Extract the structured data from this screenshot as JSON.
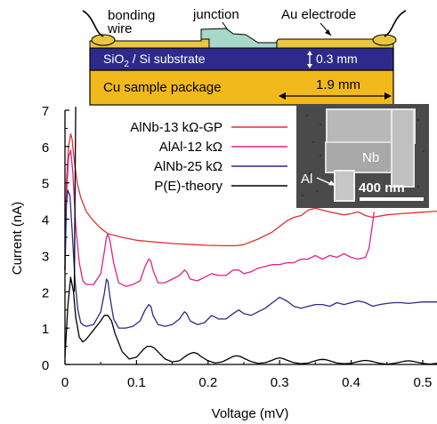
{
  "diagram": {
    "labels": {
      "bonding_wire_1": "bonding",
      "bonding_wire_2": "wire",
      "junction": "junction",
      "au_electrode": "Au electrode",
      "substrate_pre": "SiO",
      "substrate_sub": "2",
      "substrate_post": " / Si substrate",
      "thickness": "0.3 mm",
      "package": "Cu sample package",
      "width": "1.9 mm"
    },
    "colors": {
      "substrate": "#2e2a8c",
      "package": "#f2b91c",
      "electrode": "#e9c640",
      "junction": "#a8d8c8"
    }
  },
  "inset": {
    "label_nb": "Nb",
    "label_al": "Al",
    "scalebar": "400 nm"
  },
  "chart_data": {
    "type": "line",
    "xlabel": "Voltage (mV)",
    "ylabel": "Current (nA)",
    "xlim": [
      0,
      0.52
    ],
    "ylim": [
      0,
      7
    ],
    "xticks": [
      "0",
      "0.1",
      "0.2",
      "0.3",
      "0.4",
      "0.5"
    ],
    "yticks": [
      "0",
      "1",
      "2",
      "3",
      "4",
      "5",
      "6",
      "7"
    ],
    "legend_position": "top-center",
    "series": [
      {
        "name": "AlNb-13 kΩ-GP",
        "color": "#e03030",
        "x": [
          0,
          0.002,
          0.005,
          0.008,
          0.01,
          0.013,
          0.017,
          0.022,
          0.03,
          0.04,
          0.05,
          0.06,
          0.08,
          0.1,
          0.12,
          0.15,
          0.18,
          0.2,
          0.22,
          0.24,
          0.25,
          0.27,
          0.29,
          0.3,
          0.31,
          0.32,
          0.33,
          0.34,
          0.35,
          0.37,
          0.39,
          0.4,
          0.41,
          0.42,
          0.43,
          0.45,
          0.47,
          0.49,
          0.52
        ],
        "y": [
          2.6,
          5.0,
          6.0,
          6.35,
          6.2,
          5.6,
          5.0,
          4.6,
          4.2,
          3.95,
          3.75,
          3.6,
          3.5,
          3.42,
          3.38,
          3.33,
          3.3,
          3.28,
          3.27,
          3.27,
          3.3,
          3.45,
          3.65,
          3.8,
          3.95,
          4.05,
          4.1,
          4.25,
          4.3,
          4.2,
          4.12,
          4.15,
          4.2,
          4.1,
          4.05,
          4.12,
          4.15,
          4.18,
          4.22
        ]
      },
      {
        "name": "AlAl-12 kΩ",
        "color": "#e0208c",
        "x": [
          0,
          0.002,
          0.005,
          0.008,
          0.011,
          0.015,
          0.02,
          0.025,
          0.03,
          0.04,
          0.05,
          0.055,
          0.058,
          0.06,
          0.063,
          0.068,
          0.075,
          0.085,
          0.095,
          0.105,
          0.112,
          0.117,
          0.12,
          0.123,
          0.13,
          0.14,
          0.15,
          0.16,
          0.167,
          0.17,
          0.175,
          0.185,
          0.195,
          0.205,
          0.215,
          0.225,
          0.235,
          0.243,
          0.25,
          0.26,
          0.27,
          0.28,
          0.29,
          0.3,
          0.31,
          0.32,
          0.33,
          0.34,
          0.35,
          0.36,
          0.37,
          0.38,
          0.39,
          0.4,
          0.41,
          0.42,
          0.425,
          0.428,
          0.43,
          0.432
        ],
        "y": [
          2.6,
          4.6,
          5.7,
          5.9,
          5.3,
          3.8,
          2.8,
          2.3,
          2.2,
          2.2,
          2.5,
          3.1,
          3.5,
          3.6,
          3.4,
          2.8,
          2.25,
          2.15,
          2.2,
          2.3,
          2.7,
          2.9,
          2.85,
          2.6,
          2.25,
          2.25,
          2.35,
          2.45,
          2.6,
          2.55,
          2.35,
          2.3,
          2.4,
          2.5,
          2.45,
          2.45,
          2.6,
          2.6,
          2.5,
          2.55,
          2.65,
          2.7,
          2.75,
          2.75,
          2.8,
          2.8,
          2.9,
          2.9,
          3.0,
          2.9,
          3.0,
          2.95,
          3.05,
          2.95,
          2.9,
          2.95,
          3.2,
          3.6,
          3.9,
          4.2
        ]
      },
      {
        "name": "AlNb-25 kΩ",
        "color": "#2a2a8c",
        "x": [
          0,
          0.002,
          0.004,
          0.007,
          0.01,
          0.014,
          0.018,
          0.022,
          0.026,
          0.03,
          0.04,
          0.05,
          0.055,
          0.058,
          0.06,
          0.063,
          0.068,
          0.075,
          0.085,
          0.095,
          0.105,
          0.112,
          0.117,
          0.12,
          0.123,
          0.13,
          0.14,
          0.15,
          0.16,
          0.167,
          0.17,
          0.175,
          0.185,
          0.195,
          0.205,
          0.215,
          0.225,
          0.235,
          0.243,
          0.25,
          0.26,
          0.27,
          0.28,
          0.29,
          0.3,
          0.31,
          0.32,
          0.33,
          0.34,
          0.35,
          0.36,
          0.37,
          0.38,
          0.39,
          0.4,
          0.41,
          0.42,
          0.43,
          0.44,
          0.45,
          0.46,
          0.47,
          0.48,
          0.49,
          0.5,
          0.52
        ],
        "y": [
          2.6,
          4.4,
          4.8,
          4.65,
          3.7,
          2.3,
          1.5,
          1.15,
          1.08,
          1.05,
          1.1,
          1.45,
          1.95,
          2.35,
          2.3,
          1.85,
          1.25,
          1.0,
          1.0,
          1.05,
          1.2,
          1.5,
          1.65,
          1.6,
          1.35,
          1.1,
          1.05,
          1.1,
          1.25,
          1.45,
          1.4,
          1.2,
          1.1,
          1.15,
          1.35,
          1.25,
          1.25,
          1.4,
          1.5,
          1.4,
          1.35,
          1.45,
          1.55,
          1.7,
          1.85,
          1.75,
          1.6,
          1.55,
          1.6,
          1.65,
          1.65,
          1.6,
          1.7,
          1.65,
          1.7,
          1.75,
          1.7,
          1.6,
          1.65,
          1.68,
          1.7,
          1.7,
          1.68,
          1.7,
          1.72,
          1.72
        ]
      },
      {
        "name": "P(E)-theory",
        "color": "#000000",
        "x": [
          0,
          0.004,
          0.008,
          0.012,
          0.015,
          0.02,
          0.025,
          0.03,
          0.04,
          0.05,
          0.055,
          0.06,
          0.065,
          0.07,
          0.08,
          0.09,
          0.1,
          0.11,
          0.115,
          0.12,
          0.125,
          0.13,
          0.14,
          0.15,
          0.16,
          0.17,
          0.175,
          0.18,
          0.185,
          0.19,
          0.2,
          0.21,
          0.22,
          0.23,
          0.235,
          0.24,
          0.245,
          0.25,
          0.26,
          0.27,
          0.28,
          0.29,
          0.295,
          0.3,
          0.305,
          0.31,
          0.32,
          0.33,
          0.34,
          0.35,
          0.355,
          0.36,
          0.365,
          0.37,
          0.38,
          0.39,
          0.4,
          0.41,
          0.415,
          0.42,
          0.425,
          0.43,
          0.44,
          0.45,
          0.46,
          0.47,
          0.475,
          0.48,
          0.485,
          0.49,
          0.5,
          0.51,
          0.52
        ],
        "y": [
          0.2,
          1.6,
          2.4,
          2.0,
          1.3,
          0.75,
          0.62,
          0.7,
          0.95,
          1.2,
          1.35,
          1.35,
          1.2,
          0.85,
          0.35,
          0.15,
          0.2,
          0.42,
          0.5,
          0.5,
          0.45,
          0.35,
          0.15,
          0.07,
          0.1,
          0.25,
          0.3,
          0.33,
          0.3,
          0.22,
          0.1,
          0.04,
          0.07,
          0.17,
          0.22,
          0.24,
          0.22,
          0.17,
          0.08,
          0.03,
          0.05,
          0.12,
          0.16,
          0.18,
          0.16,
          0.12,
          0.05,
          0.02,
          0.04,
          0.1,
          0.13,
          0.14,
          0.13,
          0.1,
          0.04,
          0.02,
          0.03,
          0.08,
          0.1,
          0.11,
          0.1,
          0.08,
          0.03,
          0.01,
          0.03,
          0.07,
          0.09,
          0.1,
          0.09,
          0.07,
          0.03,
          0.01,
          0.03
        ]
      }
    ]
  }
}
